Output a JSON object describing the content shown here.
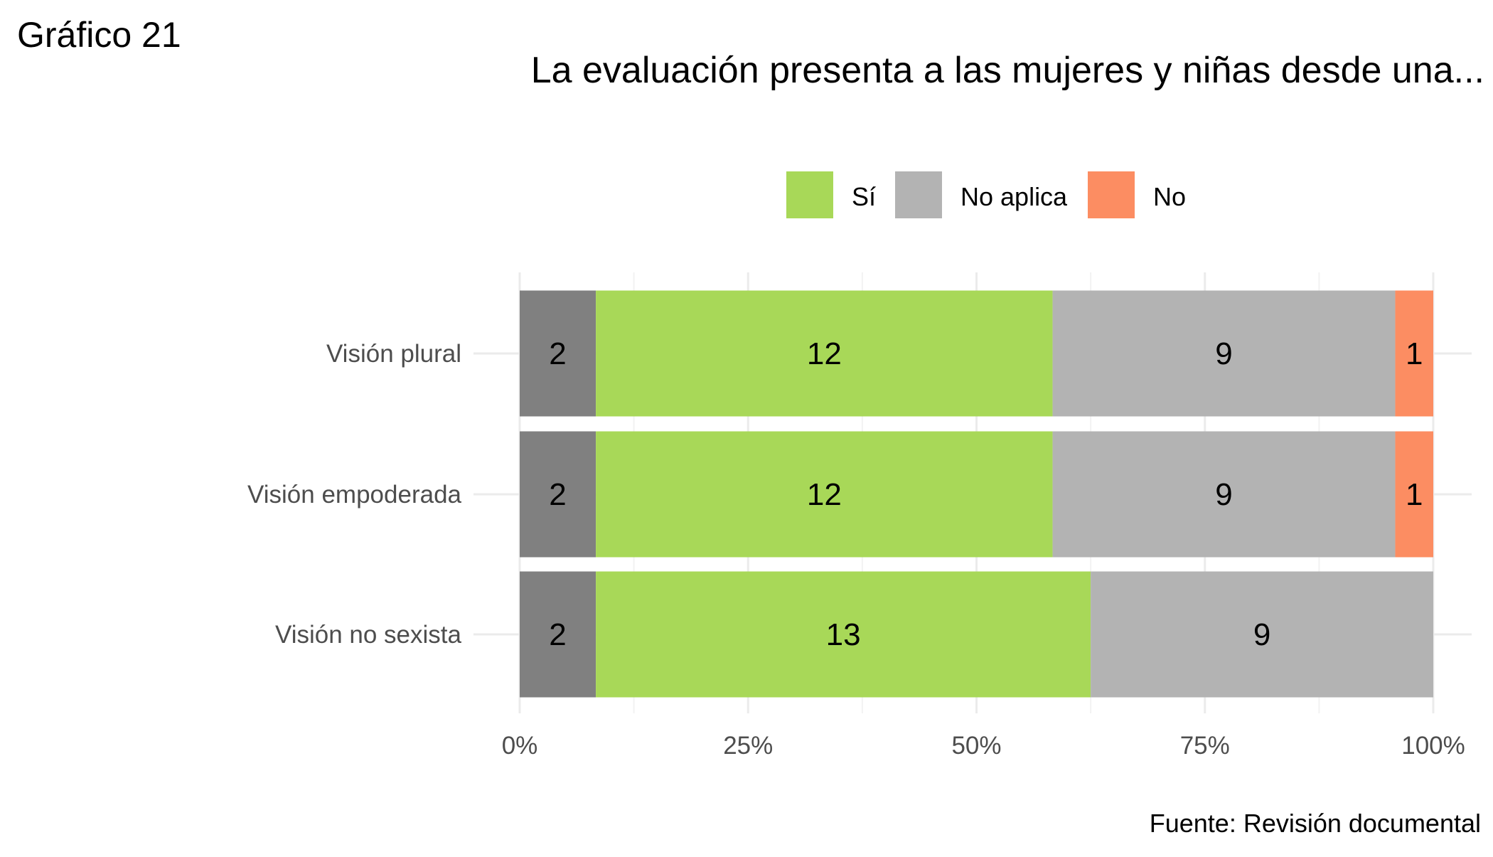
{
  "figure_label": "Gráfico 21",
  "source_note": "Fuente: Revisión documental",
  "chart_data": {
    "type": "bar",
    "orientation": "horizontal",
    "stacking": "percent",
    "title": "La evaluación presenta a las mujeres y niñas desde una...",
    "xlabel": "",
    "ylabel": "",
    "xlim": [
      0,
      100
    ],
    "x_tick_values": [
      0,
      25,
      50,
      75,
      100
    ],
    "x_tick_labels": [
      "0%",
      "25%",
      "50%",
      "75%",
      "100%"
    ],
    "grid": true,
    "legend_position": "top",
    "legend": [
      {
        "name": "Sí",
        "color": "#a8d858"
      },
      {
        "name": "No aplica",
        "color": "#b3b3b3"
      },
      {
        "name": "No",
        "color": "#fc8d62"
      }
    ],
    "categories": [
      "Visión plural",
      "Visión empoderada",
      "Visión no sexista"
    ],
    "segment_order": [
      "",
      "Sí",
      "No aplica",
      "No"
    ],
    "series": [
      {
        "name": "",
        "color": "#808080",
        "values": [
          2,
          2,
          2
        ]
      },
      {
        "name": "Sí",
        "color": "#a8d858",
        "values": [
          12,
          12,
          13
        ]
      },
      {
        "name": "No aplica",
        "color": "#b3b3b3",
        "values": [
          9,
          9,
          9
        ]
      },
      {
        "name": "No",
        "color": "#fc8d62",
        "values": [
          1,
          1,
          0
        ]
      }
    ]
  }
}
